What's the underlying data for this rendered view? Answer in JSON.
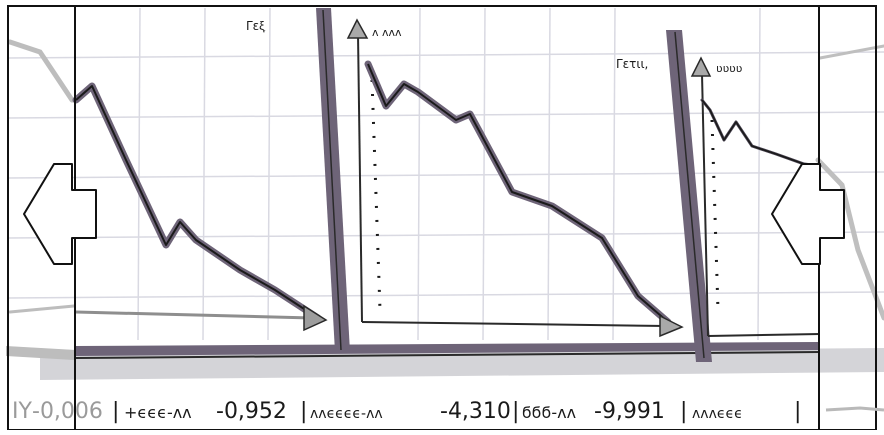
{
  "panels": [
    {
      "label": "Γεξ᷊᷊",
      "axis_label": ""
    },
    {
      "label": "",
      "axis_label": "ʌ ʌʌʌ"
    },
    {
      "label": "Γετιι,",
      "axis_label": "ʋʋʋʋ"
    }
  ],
  "ticker": {
    "items": [
      {
        "name": "IY",
        "value": "-0,006"
      },
      {
        "name": "+ϵϵϵ-ʌʌ",
        "value": "-0,952"
      },
      {
        "name": "ʌʌϵϵϵϵ-ʌʌ",
        "value": "-4,310"
      },
      {
        "name": "ϭϭϭ-ʌʌ",
        "value": "-9,991"
      },
      {
        "name": "ʌʌʌϵϵϵ",
        "value": ""
      }
    ]
  },
  "nav": {
    "prev_icon": "arrow-left-icon",
    "next_icon": "arrow-left-icon"
  },
  "colors": {
    "ink": "#1a1a1a",
    "wash": "#6e6478",
    "grid": "#d4d4dc",
    "ghost": "#b9b9b9"
  }
}
